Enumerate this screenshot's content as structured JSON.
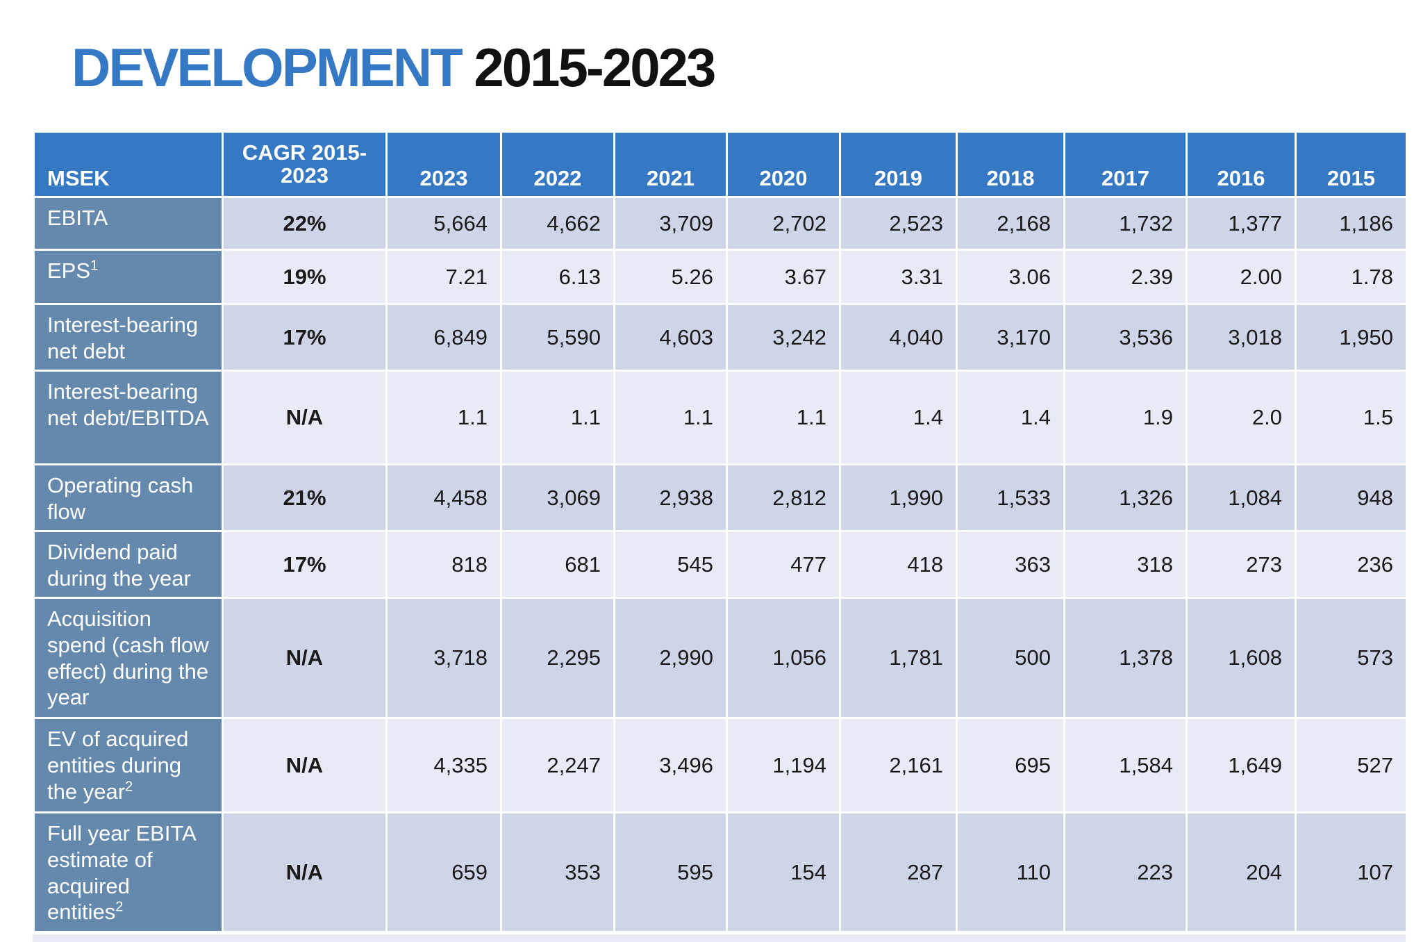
{
  "title": {
    "part1": "DEVELOPMENT",
    "part2": "2015-2023"
  },
  "table": {
    "headers": [
      "MSEK",
      "CAGR 2015-2023",
      "2023",
      "2022",
      "2021",
      "2020",
      "2019",
      "2018",
      "2017",
      "2016",
      "2015"
    ],
    "rows": [
      {
        "label": "EBITA",
        "sup": "",
        "cagr": "22%",
        "values": [
          "5,664",
          "4,662",
          "3,709",
          "2,702",
          "2,523",
          "2,168",
          "1,732",
          "1,377",
          "1,186"
        ]
      },
      {
        "label": "EPS",
        "sup": "1",
        "cagr": "19%",
        "values": [
          "7.21",
          "6.13",
          "5.26",
          "3.67",
          "3.31",
          "3.06",
          "2.39",
          "2.00",
          "1.78"
        ]
      },
      {
        "label": "Interest-bearing net debt",
        "sup": "",
        "cagr": "17%",
        "values": [
          "6,849",
          "5,590",
          "4,603",
          "3,242",
          "4,040",
          "3,170",
          "3,536",
          "3,018",
          "1,950"
        ]
      },
      {
        "label": "Interest-bearing net debt/EBITDA",
        "sup": "",
        "cagr": "N/A",
        "values": [
          "1.1",
          "1.1",
          "1.1",
          "1.1",
          "1.4",
          "1.4",
          "1.9",
          "2.0",
          "1.5"
        ]
      },
      {
        "label": "Operating cash flow",
        "sup": "",
        "cagr": "21%",
        "values": [
          "4,458",
          "3,069",
          "2,938",
          "2,812",
          "1,990",
          "1,533",
          "1,326",
          "1,084",
          "948"
        ]
      },
      {
        "label": "Dividend paid during the year",
        "sup": "",
        "cagr": "17%",
        "values": [
          "818",
          "681",
          "545",
          "477",
          "418",
          "363",
          "318",
          "273",
          "236"
        ]
      },
      {
        "label": "Acquisition spend (cash flow effect) during the year",
        "sup": "",
        "cagr": "N/A",
        "values": [
          "3,718",
          "2,295",
          "2,990",
          "1,056",
          "1,781",
          "500",
          "1,378",
          "1,608",
          "573"
        ]
      },
      {
        "label": "EV of acquired entities during the year",
        "sup": "2",
        "cagr": "N/A",
        "values": [
          "4,335",
          "2,247",
          "3,496",
          "1,194",
          "2,161",
          "695",
          "1,584",
          "1,649",
          "527"
        ]
      },
      {
        "label": "Full year EBITA estimate of acquired entities",
        "sup": "2",
        "cagr": "N/A",
        "values": [
          "659",
          "353",
          "595",
          "154",
          "287",
          "110",
          "223",
          "204",
          "107"
        ]
      }
    ]
  },
  "colors": {
    "header_blue": "#3578c4",
    "label_blue": "#6589ad",
    "row_dark": "#cdd5e7",
    "row_light": "#e8ebf5"
  }
}
